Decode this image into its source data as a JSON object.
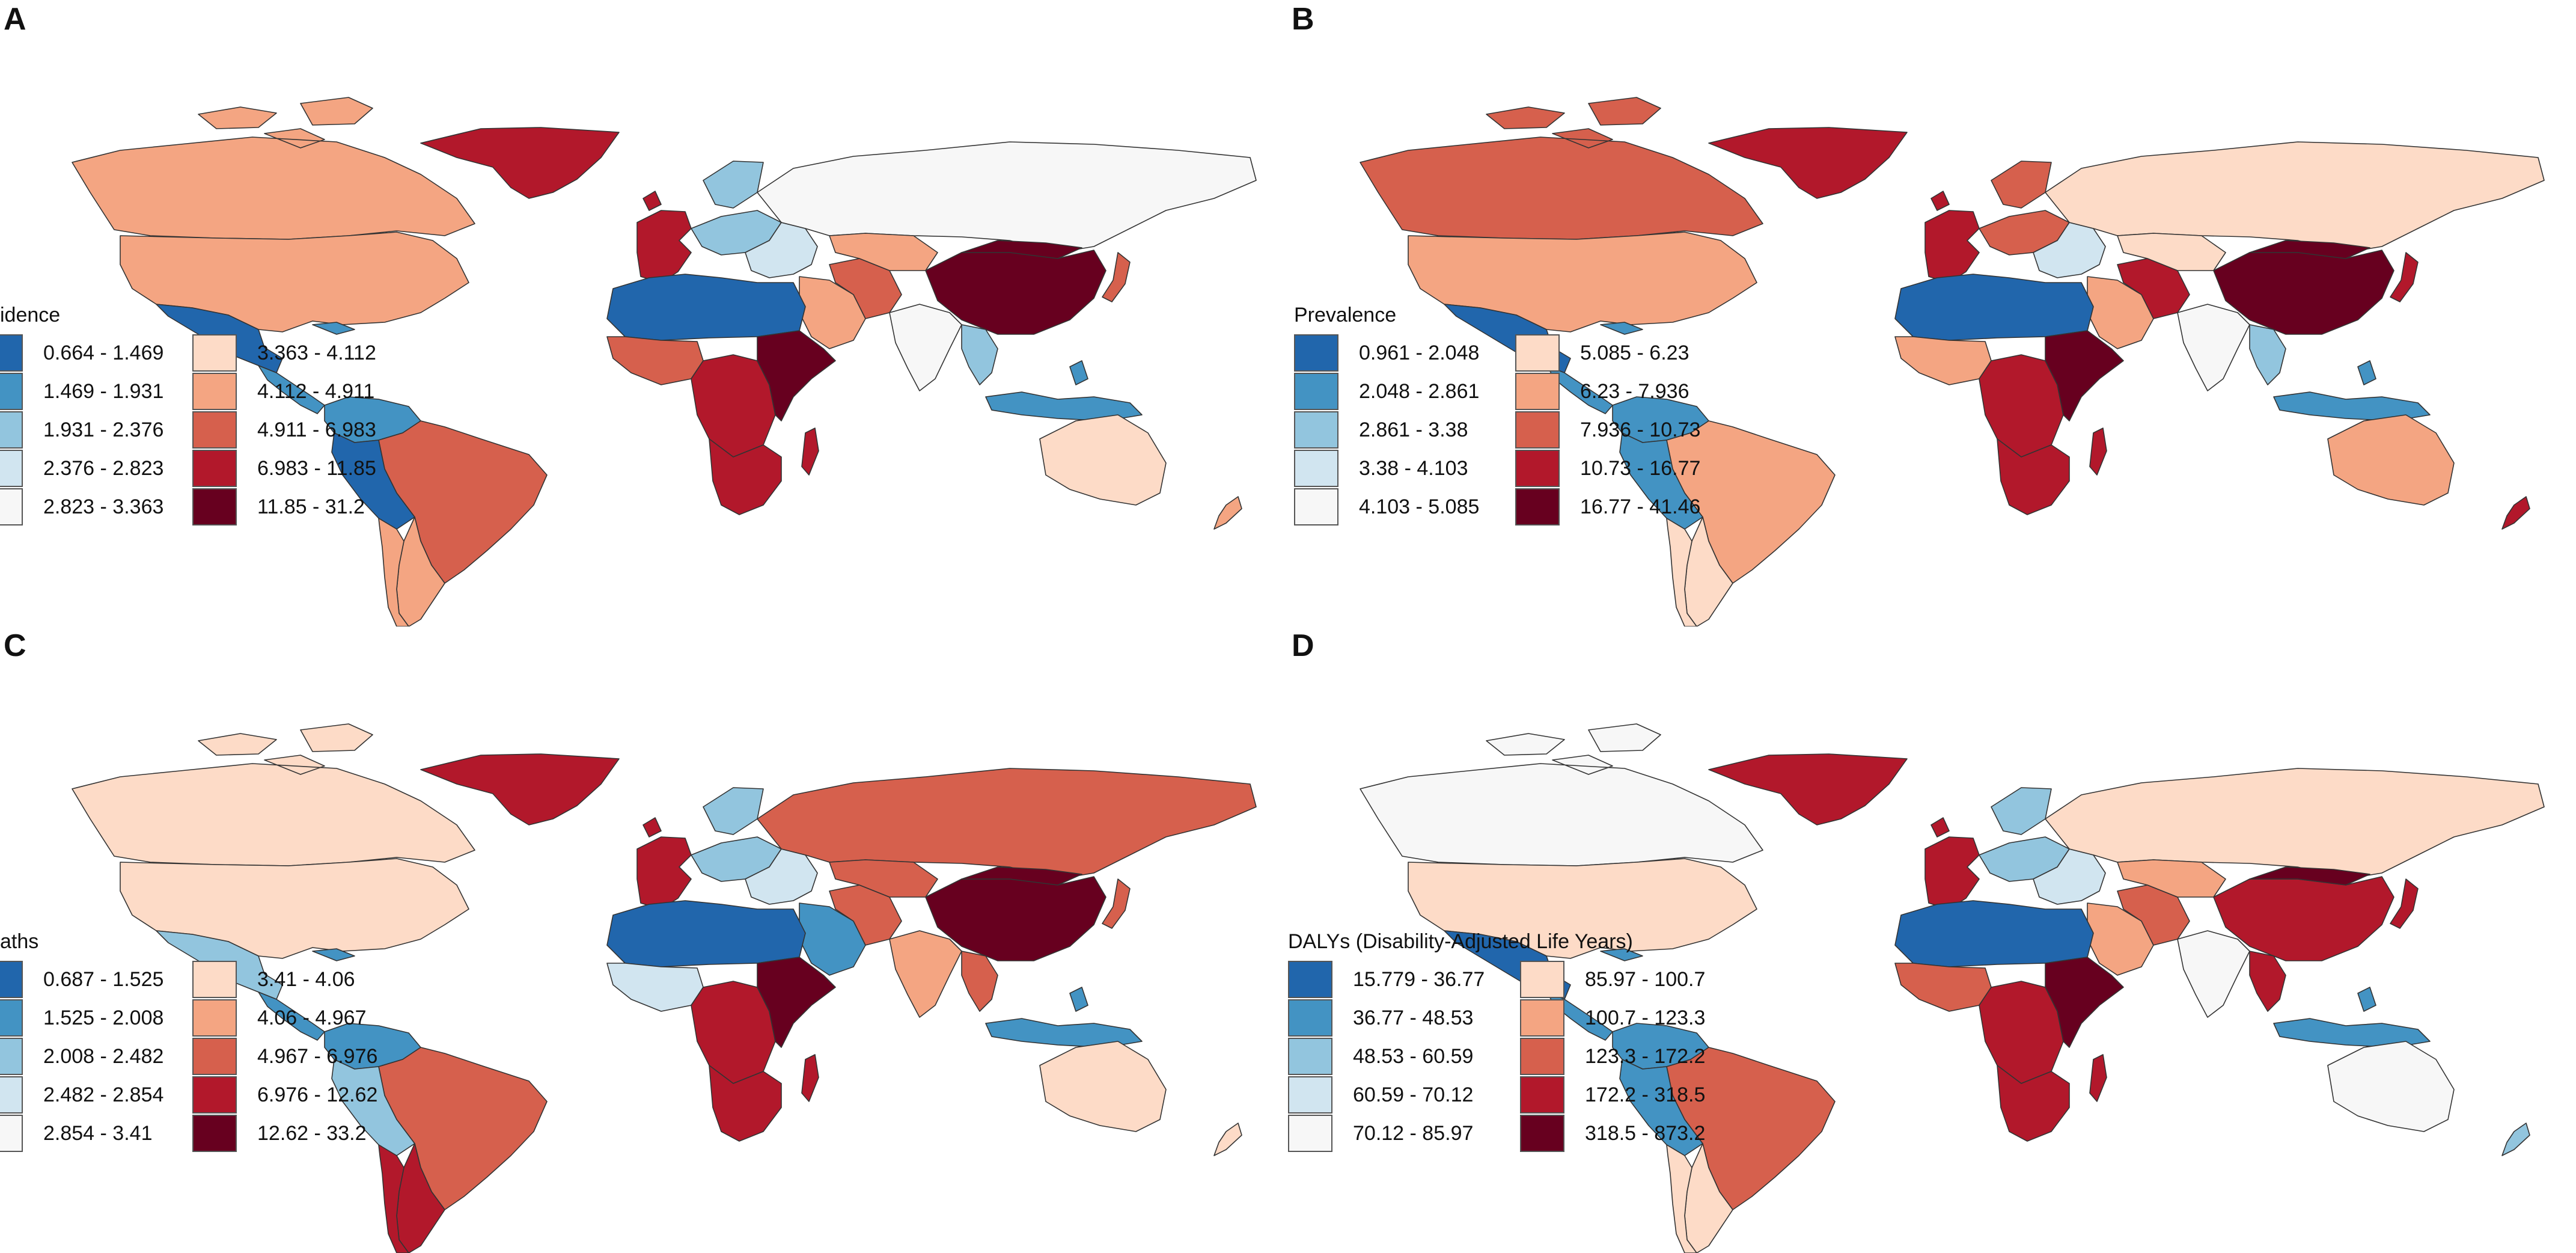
{
  "palette": [
    "#2166ac",
    "#4393c3",
    "#92c5de",
    "#d1e5f0",
    "#f7f7f7",
    "#fddbc7",
    "#f4a582",
    "#d6604d",
    "#b2182b",
    "#67001f"
  ],
  "panels": [
    {
      "letter": "A",
      "legend_title": "idence",
      "ranges": [
        "0.664 - 1.469",
        "1.469 - 1.931",
        "1.931 - 2.376",
        "2.376 - 2.823",
        "2.823 - 3.363",
        "3.363 - 4.112",
        "4.112 - 4.911",
        "4.911 - 6.983",
        "6.983 - 11.85",
        "11.85 - 31.2"
      ],
      "regions": {
        "canada": 6,
        "usa": 6,
        "mexico": 0,
        "central_america": 1,
        "greenland": 8,
        "colombia_venezuela": 1,
        "brazil": 7,
        "peru_bolivia": 0,
        "southern_cone": 6,
        "chile": 6,
        "west_europe": 8,
        "north_europe": 2,
        "east_europe": 3,
        "russia": 4,
        "china": 9,
        "mongolia": 9,
        "japan": 7,
        "india": 4,
        "middle_east": 6,
        "iran": 7,
        "central_asia": 6,
        "north_africa": 0,
        "west_africa": 7,
        "central_africa": 8,
        "east_africa": 9,
        "southern_africa": 8,
        "madagascar": 8,
        "se_asia": 2,
        "indonesia": 1,
        "australia": 5,
        "new_zealand": 6
      }
    },
    {
      "letter": "B",
      "legend_title": "Prevalence",
      "ranges": [
        "0.961 - 2.048",
        "2.048 - 2.861",
        "2.861 - 3.38",
        "3.38 - 4.103",
        "4.103 - 5.085",
        "5.085 - 6.23",
        "6.23 - 7.936",
        "7.936 - 10.73",
        "10.73 - 16.77",
        "16.77 - 41.46"
      ],
      "regions": {
        "canada": 7,
        "usa": 6,
        "mexico": 0,
        "central_america": 1,
        "greenland": 8,
        "colombia_venezuela": 1,
        "brazil": 6,
        "peru_bolivia": 1,
        "southern_cone": 5,
        "chile": 5,
        "west_europe": 8,
        "north_europe": 7,
        "east_europe": 3,
        "russia": 5,
        "china": 9,
        "mongolia": 9,
        "japan": 8,
        "india": 4,
        "middle_east": 6,
        "iran": 8,
        "central_asia": 5,
        "north_africa": 0,
        "west_africa": 6,
        "central_africa": 8,
        "east_africa": 9,
        "southern_africa": 8,
        "madagascar": 8,
        "se_asia": 2,
        "indonesia": 1,
        "australia": 6,
        "new_zealand": 8
      }
    },
    {
      "letter": "C",
      "legend_title": "aths",
      "ranges": [
        "0.687 - 1.525",
        "1.525 - 2.008",
        "2.008 - 2.482",
        "2.482 - 2.854",
        "2.854 - 3.41",
        "3.41 - 4.06",
        "4.06 - 4.967",
        "4.967 - 6.976",
        "6.976 - 12.62",
        "12.62 - 33.2"
      ],
      "regions": {
        "canada": 5,
        "usa": 5,
        "mexico": 2,
        "central_america": 1,
        "greenland": 8,
        "colombia_venezuela": 1,
        "brazil": 7,
        "peru_bolivia": 2,
        "southern_cone": 8,
        "chile": 8,
        "west_europe": 8,
        "north_europe": 2,
        "east_europe": 3,
        "russia": 7,
        "china": 9,
        "mongolia": 9,
        "japan": 7,
        "india": 6,
        "middle_east": 1,
        "iran": 7,
        "central_asia": 7,
        "north_africa": 0,
        "west_africa": 3,
        "central_africa": 8,
        "east_africa": 9,
        "southern_africa": 8,
        "madagascar": 8,
        "se_asia": 7,
        "indonesia": 1,
        "australia": 5,
        "new_zealand": 5
      }
    },
    {
      "letter": "D",
      "legend_title": "DALYs (Disability-Adjusted Life Years)",
      "ranges": [
        "15.779 - 36.77",
        "36.77 - 48.53",
        "48.53 - 60.59",
        "60.59 - 70.12",
        "70.12 - 85.97",
        "85.97 - 100.7",
        "100.7 - 123.3",
        "123.3 - 172.2",
        "172.2 - 318.5",
        "318.5 - 873.2"
      ],
      "regions": {
        "canada": 4,
        "usa": 5,
        "mexico": 0,
        "central_america": 1,
        "greenland": 8,
        "colombia_venezuela": 1,
        "brazil": 7,
        "peru_bolivia": 1,
        "southern_cone": 5,
        "chile": 5,
        "west_europe": 8,
        "north_europe": 2,
        "east_europe": 3,
        "russia": 5,
        "china": 8,
        "mongolia": 9,
        "japan": 8,
        "india": 4,
        "middle_east": 6,
        "iran": 7,
        "central_asia": 6,
        "north_africa": 0,
        "west_africa": 7,
        "central_africa": 8,
        "east_africa": 9,
        "southern_africa": 8,
        "madagascar": 8,
        "se_asia": 8,
        "indonesia": 1,
        "australia": 4,
        "new_zealand": 2
      }
    }
  ]
}
